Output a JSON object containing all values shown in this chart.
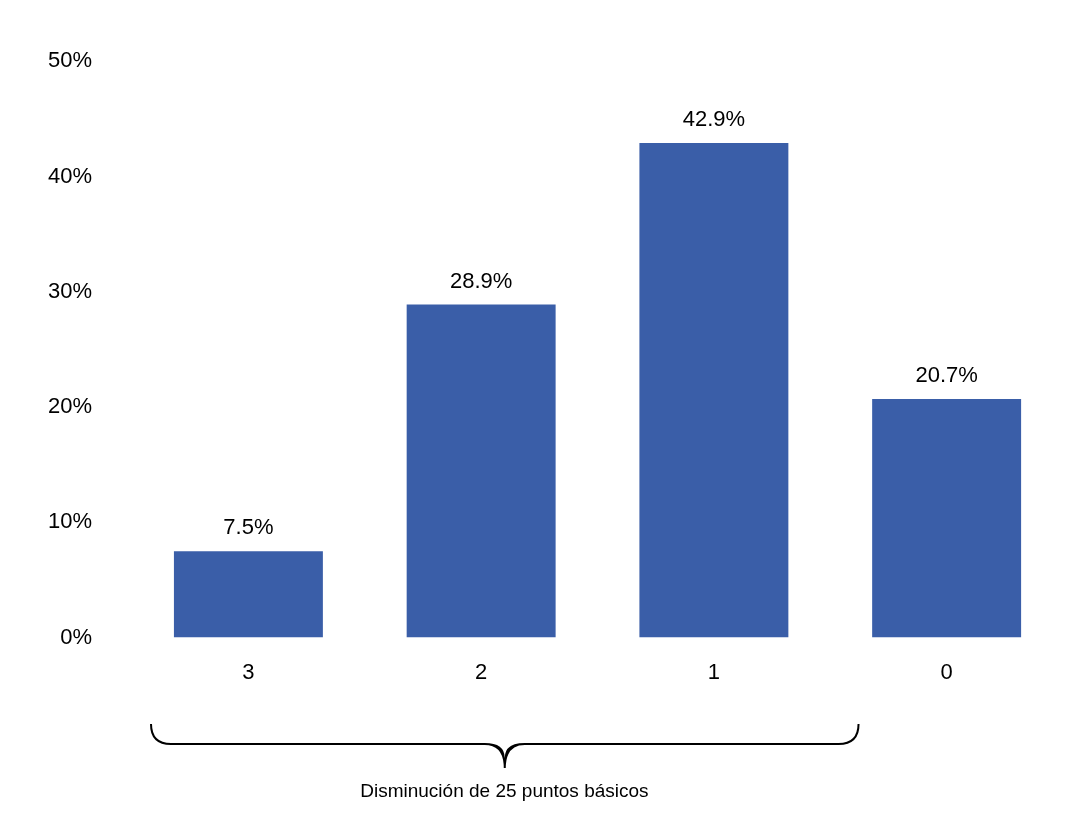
{
  "chart_data": {
    "type": "bar",
    "categories": [
      "3",
      "2",
      "1",
      "0"
    ],
    "values": [
      7.5,
      28.9,
      42.9,
      20.7
    ],
    "value_labels": [
      "7.5%",
      "28.9%",
      "42.9%",
      "20.7%"
    ],
    "color": "#3a5ea8",
    "ylim": [
      0,
      50
    ],
    "yticks": [
      {
        "value": 0,
        "label": "0%"
      },
      {
        "value": 10,
        "label": "10%"
      },
      {
        "value": 20,
        "label": "20%"
      },
      {
        "value": 30,
        "label": "30%"
      },
      {
        "value": 40,
        "label": "40%"
      },
      {
        "value": 50,
        "label": "50%"
      }
    ],
    "grid": false,
    "legend": false,
    "annotations": [
      "Disminución de 25 puntos básicos"
    ]
  }
}
